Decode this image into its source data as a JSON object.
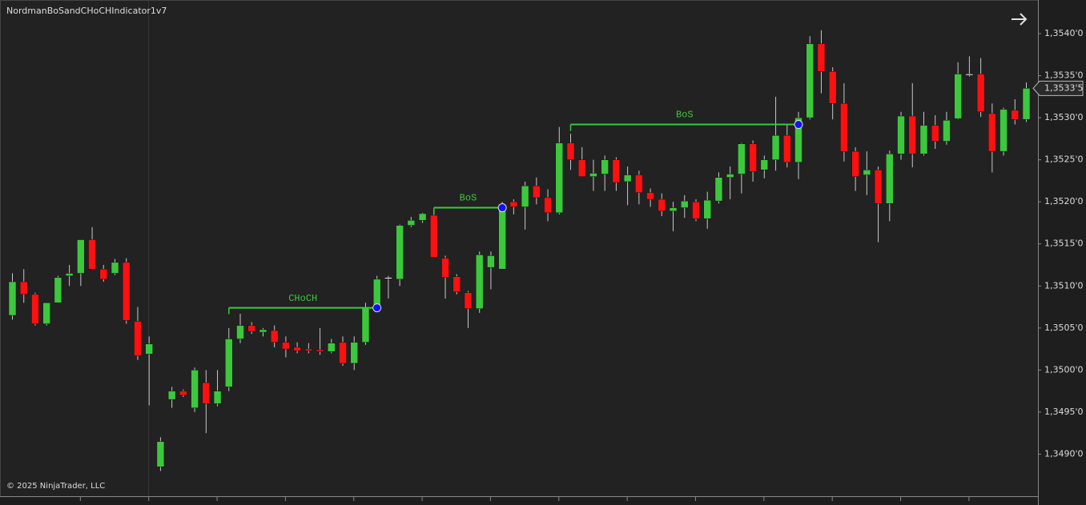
{
  "chart_data": {
    "type": "candlestick",
    "title": "NordmanBoSandCHoCHIndicator1v7",
    "footer": "© 2025 NinjaTrader, LLC",
    "up_color": "#3cc83c",
    "down_color": "#ff1010",
    "doji_color": "#ffffff",
    "ylim": [
      1.3485,
      1.3544
    ],
    "yticks": [
      {
        "value": 1.349,
        "label": "1,3490'0"
      },
      {
        "value": 1.3495,
        "label": "1,3495'0"
      },
      {
        "value": 1.35,
        "label": "1,3500'0"
      },
      {
        "value": 1.3505,
        "label": "1,3505'0"
      },
      {
        "value": 1.351,
        "label": "1,3510'0"
      },
      {
        "value": 1.3515,
        "label": "1,3515'0"
      },
      {
        "value": 1.352,
        "label": "1,3520'0"
      },
      {
        "value": 1.3525,
        "label": "1,3525'0"
      },
      {
        "value": 1.353,
        "label": "1,3530'0"
      },
      {
        "value": 1.3535,
        "label": "1,3535'0"
      },
      {
        "value": 1.354,
        "label": "1,3540'0"
      }
    ],
    "last_price": {
      "value": 1.35335,
      "label": "1,3533'5"
    },
    "open": [
      1.35065,
      1.35105,
      1.3509,
      1.35055,
      1.3508,
      1.35112,
      1.35115,
      1.35155,
      1.3512,
      1.35115,
      1.35128,
      1.35058,
      1.35019,
      1.34885,
      1.34965,
      1.34975,
      1.34955,
      1.34985,
      1.3496,
      1.3498,
      1.35037,
      1.35053,
      1.35045,
      1.35047,
      1.35033,
      1.35027,
      1.35025,
      1.35024,
      1.35022,
      1.35033,
      1.35008,
      1.35033,
      1.35074,
      1.3511,
      1.35108,
      1.35172,
      1.35178,
      1.35184,
      1.35133,
      1.35111,
      1.35092,
      1.35073,
      1.35122,
      1.3512,
      1.352,
      1.35194,
      1.35219,
      1.35205,
      1.35187,
      1.3527,
      1.3525,
      1.3523,
      1.35233,
      1.3525,
      1.35224,
      1.35232,
      1.35211,
      1.35203,
      1.35189,
      1.35193,
      1.352,
      1.3518,
      1.35201,
      1.35229,
      1.35233,
      1.35269,
      1.35238,
      1.3525,
      1.35279,
      1.35247,
      1.353,
      1.35388,
      1.35355,
      1.35317,
      1.3526,
      1.35232,
      1.35238,
      1.35198,
      1.35257,
      1.35302,
      1.35257,
      1.35291,
      1.35272,
      1.35299,
      1.35352,
      1.35352,
      1.35305,
      1.3526,
      1.35309,
      1.35298
    ],
    "high": [
      1.35115,
      1.3512,
      1.35092,
      1.3508,
      1.35112,
      1.35125,
      1.35155,
      1.3517,
      1.35125,
      1.35132,
      1.35133,
      1.35075,
      1.3504,
      1.3492,
      1.3498,
      1.34977,
      1.35003,
      1.35,
      1.35,
      1.3505,
      1.35067,
      1.35057,
      1.3505,
      1.35053,
      1.3504,
      1.35033,
      1.35032,
      1.3505,
      1.35037,
      1.3504,
      1.3504,
      1.3508,
      1.35112,
      1.35112,
      1.35173,
      1.35182,
      1.35187,
      1.3519,
      1.35136,
      1.35114,
      1.35094,
      1.35141,
      1.35141,
      1.352,
      1.35203,
      1.35224,
      1.35229,
      1.35215,
      1.35289,
      1.35281,
      1.35265,
      1.3525,
      1.35255,
      1.35253,
      1.35242,
      1.35237,
      1.35216,
      1.3521,
      1.352,
      1.35208,
      1.35203,
      1.35212,
      1.35235,
      1.35242,
      1.3527,
      1.35273,
      1.35255,
      1.35325,
      1.35293,
      1.35307,
      1.35397,
      1.35404,
      1.3536,
      1.35341,
      1.35265,
      1.3526,
      1.35242,
      1.35261,
      1.35307,
      1.35341,
      1.35307,
      1.35303,
      1.35307,
      1.35366,
      1.35373,
      1.35371,
      1.35317,
      1.35312,
      1.35322,
      1.35342
    ],
    "low": [
      1.3506,
      1.3508,
      1.35053,
      1.35053,
      1.3508,
      1.351,
      1.351,
      1.3512,
      1.35105,
      1.35113,
      1.35055,
      1.35012,
      1.34958,
      1.3488,
      1.34955,
      1.34968,
      1.3495,
      1.34925,
      1.34957,
      1.34975,
      1.35032,
      1.35043,
      1.3504,
      1.35027,
      1.35015,
      1.3502,
      1.3502,
      1.35018,
      1.3502,
      1.35005,
      1.35,
      1.3503,
      1.3507,
      1.35085,
      1.351,
      1.3517,
      1.35175,
      1.35134,
      1.35085,
      1.3509,
      1.3505,
      1.35068,
      1.35096,
      1.3512,
      1.35185,
      1.35167,
      1.35197,
      1.35177,
      1.35185,
      1.35238,
      1.3523,
      1.35213,
      1.35213,
      1.35213,
      1.35196,
      1.35197,
      1.35194,
      1.35183,
      1.35165,
      1.35181,
      1.35177,
      1.35168,
      1.35198,
      1.35203,
      1.3521,
      1.35224,
      1.35228,
      1.35237,
      1.35241,
      1.35227,
      1.35298,
      1.35329,
      1.35298,
      1.35248,
      1.35213,
      1.35208,
      1.35152,
      1.35177,
      1.3525,
      1.35241,
      1.35255,
      1.35263,
      1.35268,
      1.35298,
      1.35349,
      1.35301,
      1.35235,
      1.35255,
      1.35292,
      1.35295
    ],
    "close": [
      1.35105,
      1.3509,
      1.35055,
      1.3508,
      1.3511,
      1.35115,
      1.35155,
      1.3512,
      1.35108,
      1.35128,
      1.35059,
      1.35017,
      1.35031,
      1.34915,
      1.34975,
      1.3497,
      1.35,
      1.3496,
      1.34975,
      1.35037,
      1.35053,
      1.35046,
      1.35048,
      1.35033,
      1.35025,
      1.35023,
      1.35023,
      1.35022,
      1.35032,
      1.35008,
      1.35033,
      1.35074,
      1.35108,
      1.3511,
      1.35172,
      1.35178,
      1.35186,
      1.35134,
      1.3511,
      1.35093,
      1.35073,
      1.35137,
      1.35136,
      1.35193,
      1.35194,
      1.35219,
      1.35205,
      1.35187,
      1.3527,
      1.3525,
      1.3523,
      1.35234,
      1.3525,
      1.35223,
      1.35232,
      1.35211,
      1.35203,
      1.35189,
      1.35193,
      1.35201,
      1.3518,
      1.35202,
      1.35229,
      1.35233,
      1.35269,
      1.35236,
      1.3525,
      1.35279,
      1.35247,
      1.353,
      1.35388,
      1.35355,
      1.35317,
      1.3526,
      1.3523,
      1.35238,
      1.35198,
      1.35257,
      1.35302,
      1.35257,
      1.35291,
      1.35272,
      1.35297,
      1.35352,
      1.35352,
      1.35307,
      1.3526,
      1.3531,
      1.35298,
      1.35335
    ],
    "annotations": [
      {
        "text": "CHoCH",
        "level": 1.35074,
        "from": 19,
        "to": 32
      },
      {
        "text": "BoS",
        "level": 1.35193,
        "from": 37,
        "to": 43
      },
      {
        "text": "BoS",
        "level": 1.35292,
        "from": 49,
        "to": 69
      }
    ]
  }
}
